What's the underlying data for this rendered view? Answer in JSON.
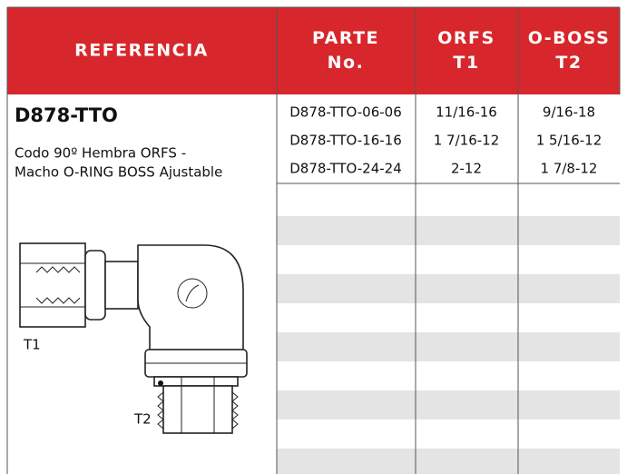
{
  "header": {
    "columns": [
      [
        "REFERENCIA"
      ],
      [
        "PARTE",
        "No."
      ],
      [
        "ORFS",
        "T1"
      ],
      [
        "O-BOSS",
        "T2"
      ]
    ]
  },
  "product": {
    "code": "D878-TTO",
    "description": [
      "Codo 90º Hembra ORFS -",
      "Macho O-RING BOSS Ajustable"
    ],
    "labels": [
      "T1",
      "T2"
    ]
  },
  "table": {
    "rows": [
      [
        "D878-TTO-06-06",
        "11/16-16",
        "9/16-18"
      ],
      [
        "D878-TTO-16-16",
        "1 7/16-12",
        "1 5/16-12"
      ],
      [
        "D878-TTO-24-24",
        "2-12",
        "1 7/8-12"
      ]
    ]
  }
}
